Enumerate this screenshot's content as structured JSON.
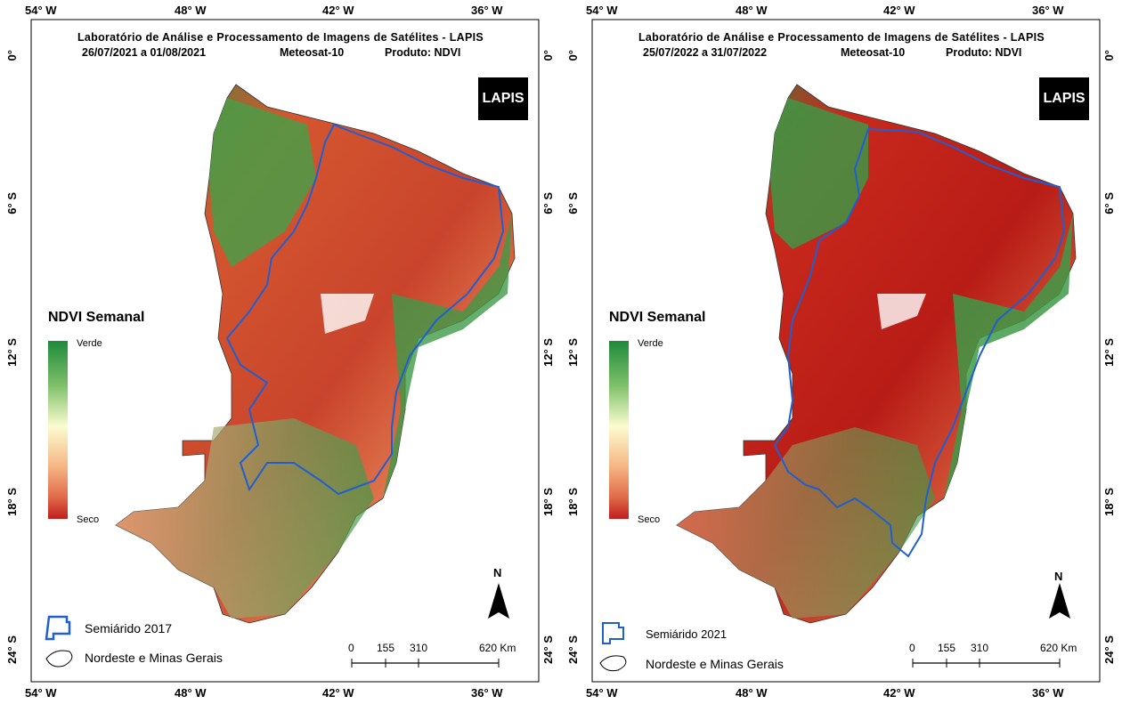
{
  "panels": [
    {
      "title_line1": "Laboratório de Análise e Processamento de Imagens de Satélites - LAPIS",
      "date_range": "26/07/2021  a  01/08/2021",
      "satellite": "Meteosat-10",
      "product": "Produto:  NDVI",
      "logo": "LAPIS",
      "legend_title": "NDVI Semanal",
      "legend_high": "Verde",
      "legend_low": "Seco",
      "north": "N",
      "scale_labels": [
        "0",
        "155",
        "310",
        "620 Km"
      ],
      "legend_semiarido": "Semiárido 2017",
      "legend_region": "Nordeste e Minas Gerais",
      "lon_ticks": [
        "54° W",
        "48° W",
        "42° W",
        "36° W"
      ],
      "lat_ticks": [
        "0°",
        "6° S",
        "12° S",
        "18° S",
        "24° S"
      ]
    },
    {
      "title_line1": "Laboratório de Análise e Processamento de Imagens de Satélites - LAPIS",
      "date_range": "25/07/2022  a  31/07/2022",
      "satellite": "Meteosat-10",
      "product": "Produto:  NDVI",
      "logo": "LAPIS",
      "legend_title": "NDVI Semanal",
      "legend_high": "Verde",
      "legend_low": "Seco",
      "north": "N",
      "scale_labels": [
        "0",
        "155",
        "310",
        "620 Km"
      ],
      "legend_semiarido": "Semiárido 2021",
      "legend_region": "Nordeste e Minas Gerais",
      "lon_ticks": [
        "54° W",
        "48° W",
        "42° W",
        "36° W"
      ],
      "lat_ticks": [
        "0°",
        "6° S",
        "12° S",
        "18° S",
        "24° S"
      ]
    }
  ],
  "colors": {
    "semiarido_border": "#1f5fd0",
    "green": "#2e8b3e",
    "red": "#c62a1e",
    "yellow": "#f4f0b0"
  }
}
